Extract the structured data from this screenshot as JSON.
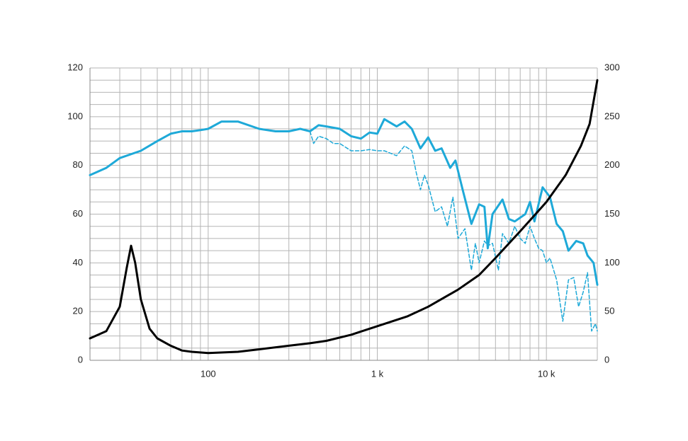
{
  "chart_data": {
    "type": "line",
    "xscale": "log",
    "xlim": [
      20,
      20000
    ],
    "xticks": [
      100,
      {
        "value": 1000,
        "label": "1 k"
      },
      {
        "value": 10000,
        "label": "10 k"
      }
    ],
    "xgrid": [
      20,
      30,
      40,
      50,
      60,
      70,
      80,
      90,
      100,
      200,
      300,
      400,
      500,
      600,
      700,
      800,
      900,
      1000,
      2000,
      3000,
      4000,
      5000,
      6000,
      7000,
      8000,
      9000,
      10000,
      20000
    ],
    "ylim": [
      0,
      120
    ],
    "yticks": [
      0,
      20,
      40,
      60,
      80,
      100,
      120
    ],
    "ygrid": [
      0,
      5,
      10,
      15,
      20,
      25,
      30,
      35,
      40,
      45,
      50,
      55,
      60,
      65,
      70,
      75,
      80,
      85,
      90,
      95,
      100,
      105,
      110,
      115,
      120
    ],
    "y2lim": [
      0,
      300
    ],
    "y2ticks": [
      0,
      50,
      100,
      150,
      200,
      250,
      300
    ],
    "grid": true,
    "series": [
      {
        "color": "#1ea9d8",
        "dashed": false,
        "x": [
          20,
          25,
          30,
          40,
          50,
          60,
          70,
          80,
          90,
          100,
          120,
          150,
          200,
          250,
          300,
          350,
          400,
          450,
          500,
          600,
          700,
          800,
          900,
          1000,
          1100,
          1300,
          1450,
          1600,
          1800,
          2000,
          2200,
          2400,
          2700,
          2900,
          3200,
          3600,
          4000,
          4300,
          4500,
          4800,
          5500,
          6000,
          6500,
          7500,
          8000,
          8500,
          9500,
          10500,
          11500,
          12500,
          13500,
          15000,
          16500,
          17500,
          19000,
          20000
        ],
        "values": [
          76,
          79,
          83,
          86,
          90,
          93,
          94,
          94,
          94.5,
          95,
          98,
          98,
          95,
          94,
          94,
          95,
          94,
          96.5,
          96,
          95,
          92,
          91,
          93.5,
          93,
          99,
          96,
          98,
          95,
          87,
          91.5,
          86,
          87,
          79,
          82,
          70,
          56,
          64,
          63,
          46,
          60,
          66,
          58,
          57,
          60,
          65,
          57,
          71,
          67,
          56,
          53,
          45,
          49,
          48,
          43,
          40,
          31
        ]
      },
      {
        "color": "#1ea9d8",
        "dashed": true,
        "x": [
          400,
          420,
          450,
          500,
          550,
          600,
          700,
          800,
          900,
          1000,
          1100,
          1300,
          1450,
          1600,
          1700,
          1800,
          1900,
          2000,
          2200,
          2400,
          2600,
          2800,
          3000,
          3300,
          3600,
          3800,
          4000,
          4300,
          4500,
          4800,
          5200,
          5500,
          6000,
          6500,
          7000,
          7500,
          8000,
          8500,
          9000,
          9500,
          10000,
          10500,
          11500,
          12500,
          13500,
          14500,
          15500,
          16500,
          17500,
          18500,
          19500,
          20000
        ],
        "values": [
          94,
          89,
          92,
          91,
          89,
          89,
          86,
          86,
          86.5,
          86,
          86,
          84,
          88,
          86,
          77,
          70,
          76,
          72,
          61,
          63,
          55,
          67,
          50,
          54,
          37,
          48,
          40,
          49,
          47,
          48,
          37,
          52,
          48,
          55,
          50,
          48,
          55,
          50,
          46,
          45,
          40,
          42,
          33,
          16,
          33,
          34,
          22,
          28,
          36,
          12,
          15,
          12
        ]
      },
      {
        "color": "#000000",
        "dashed": false,
        "axis": "y2",
        "x": [
          20,
          25,
          30,
          33,
          35,
          37,
          40,
          45,
          50,
          60,
          70,
          80,
          100,
          150,
          200,
          300,
          400,
          500,
          700,
          1000,
          1500,
          2000,
          3000,
          4000,
          5000,
          7000,
          10000,
          13000,
          16000,
          18000,
          20000
        ],
        "values": [
          22.5,
          30,
          55,
          95,
          117.5,
          100,
          62.5,
          32.5,
          22.5,
          15,
          10,
          8.75,
          7.5,
          8.75,
          11.25,
          15,
          17.5,
          20,
          26.25,
          35,
          45,
          55,
          72.5,
          87.5,
          105,
          132.5,
          162.5,
          190,
          220,
          242.5,
          287.5
        ]
      }
    ]
  }
}
